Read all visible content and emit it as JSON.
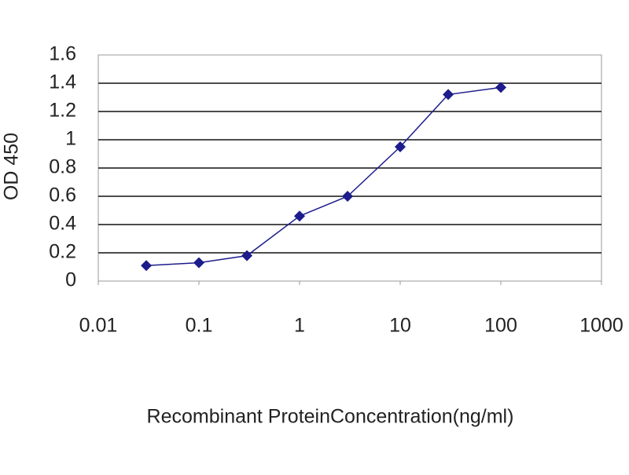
{
  "chart_data": {
    "type": "line",
    "x_label": "Recombinant ProteinConcentration(ng/ml)",
    "y_label": "OD 450",
    "x": [
      0.03,
      0.1,
      0.3,
      1,
      3,
      10,
      30,
      100
    ],
    "series": [
      {
        "color": "#1c1c8c",
        "values": [
          0.11,
          0.13,
          0.18,
          0.46,
          0.6,
          0.95,
          1.32,
          1.37
        ]
      }
    ],
    "xscale": "log",
    "xlim": [
      0.01,
      1000
    ],
    "xticks": [
      0.01,
      0.1,
      1,
      10,
      100,
      1000
    ],
    "ylim": [
      0,
      1.6
    ],
    "yticks": [
      0,
      0.2,
      0.4,
      0.6,
      0.8,
      1,
      1.2,
      1.4,
      1.6
    ],
    "grid": true
  }
}
